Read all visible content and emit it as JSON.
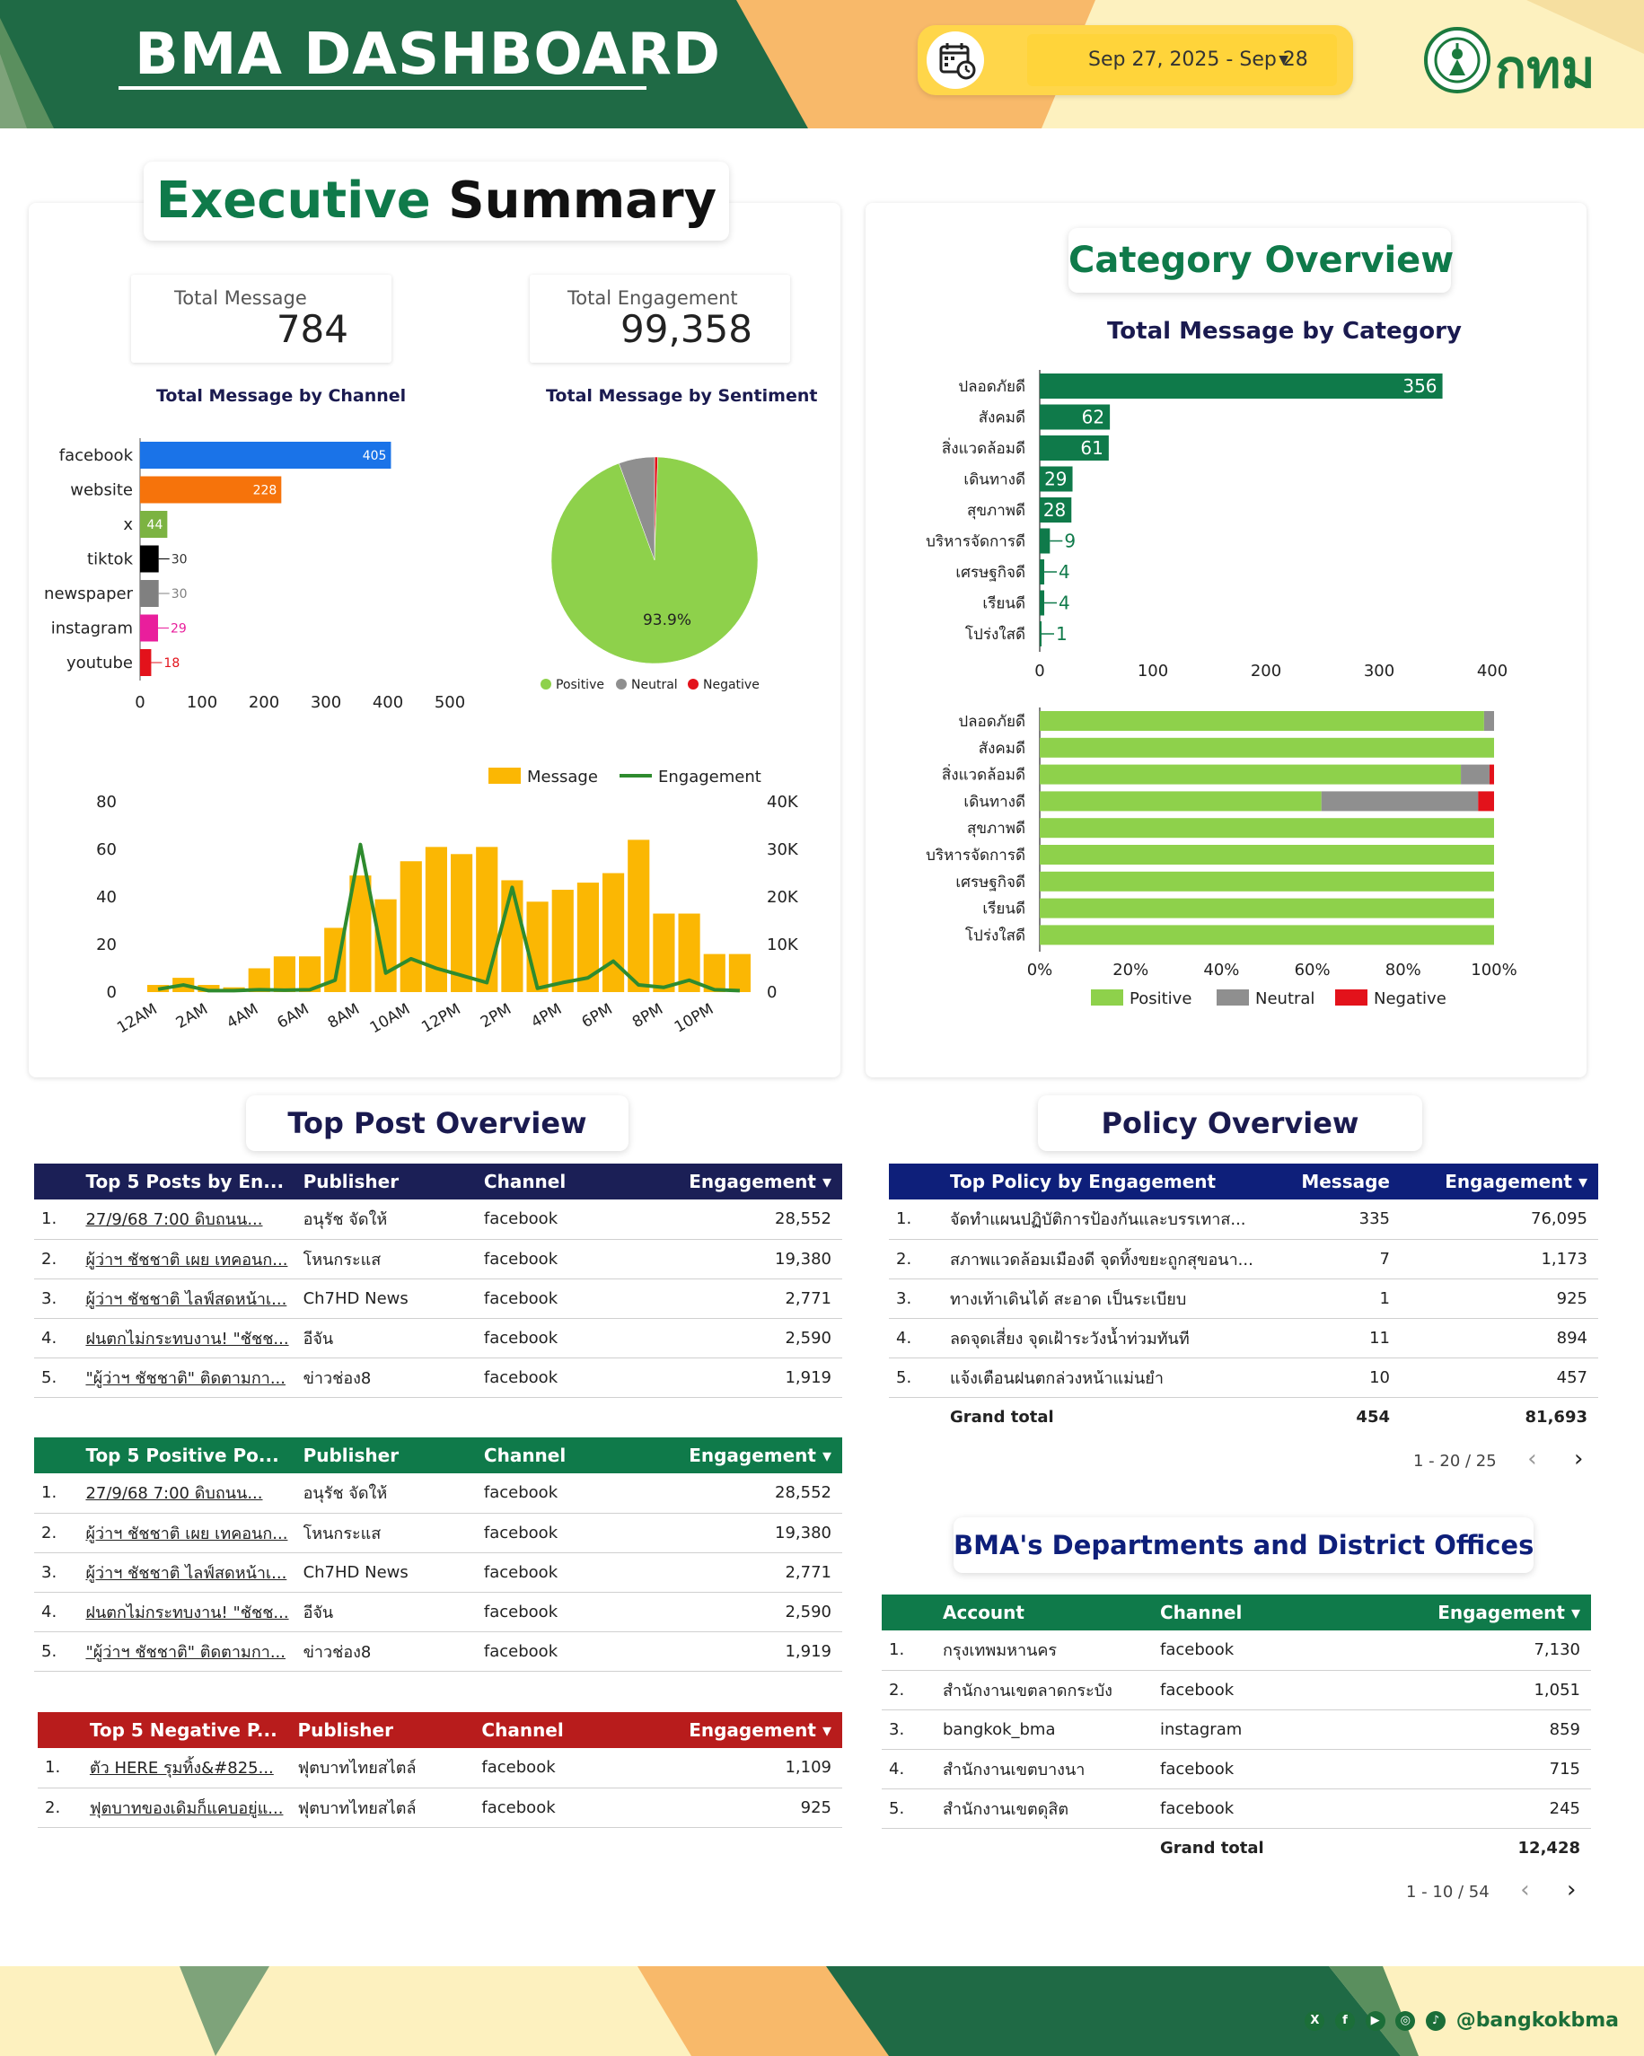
{
  "header": {
    "title": "BMA DASHBOARD",
    "date_range": "Sep 27, 2025 - Sep 28",
    "logo_text": "กทม"
  },
  "colors": {
    "dark_green": "#1f6a45",
    "green": "#0f7a4a",
    "orange": "#f8b96a",
    "cream": "#fdf1bf",
    "yellow": "#ffd64a",
    "positive": "#8ed14b",
    "neutral": "#8f8f8f",
    "negative": "#e3121b",
    "navy": "#1b1f56",
    "blue_header": "#0e1f7a",
    "red_header": "#b81c1c"
  },
  "executive": {
    "title_word1": "Executive",
    "title_word2": "Summary",
    "total_message_label": "Total Message",
    "total_message_value": "784",
    "total_engagement_label": "Total Engagement",
    "total_engagement_value": "99,358",
    "channel_chart_title": "Total Message by Channel",
    "sentiment_chart_title": "Total Message by Sentiment"
  },
  "category_section": {
    "title": "Category Overview",
    "chart_title": "Total Message by Category"
  },
  "top_post": {
    "title": "Top Post Overview",
    "engagement_table": {
      "columns": [
        "Top 5 Posts by En...",
        "Publisher",
        "Channel",
        "Engagement"
      ],
      "rows": [
        [
          "1.",
          "27/9/68 7:00 ดิบถนน...",
          "อนุรัช จัดให้",
          "facebook",
          "28,552"
        ],
        [
          "2.",
          "ผู้ว่าฯ ชัชชาติ เผย เทคอนก...",
          "โหนกระแส",
          "facebook",
          "19,380"
        ],
        [
          "3.",
          "ผู้ว่าฯ ชัชชาติ ไลฟ์สดหน้าเ...",
          "Ch7HD News",
          "facebook",
          "2,771"
        ],
        [
          "4.",
          "ฝนตกไม่กระทบงาน! \"ชัชช...",
          "อีจัน",
          "facebook",
          "2,590"
        ],
        [
          "5.",
          "\"ผู้ว่าฯ ชัชชาติ\" ติดตามกา...",
          "ข่าวช่อง8",
          "facebook",
          "1,919"
        ]
      ]
    },
    "positive_table": {
      "columns": [
        "Top 5 Positive Po...",
        "Publisher",
        "Channel",
        "Engagement"
      ],
      "rows": [
        [
          "1.",
          "27/9/68 7:00 ดิบถนน...",
          "อนุรัช จัดให้",
          "facebook",
          "28,552"
        ],
        [
          "2.",
          "ผู้ว่าฯ ชัชชาติ เผย เทคอนก...",
          "โหนกระแส",
          "facebook",
          "19,380"
        ],
        [
          "3.",
          "ผู้ว่าฯ ชัชชาติ ไลฟ์สดหน้าเ...",
          "Ch7HD News",
          "facebook",
          "2,771"
        ],
        [
          "4.",
          "ฝนตกไม่กระทบงาน! \"ชัชช...",
          "อีจัน",
          "facebook",
          "2,590"
        ],
        [
          "5.",
          "\"ผู้ว่าฯ ชัชชาติ\" ติดตามกา...",
          "ข่าวช่อง8",
          "facebook",
          "1,919"
        ]
      ]
    },
    "negative_table": {
      "columns": [
        "Top 5 Negative P...",
        "Publisher",
        "Channel",
        "Engagement"
      ],
      "rows": [
        [
          "1.",
          "ตัว HERE รุมทิ้ง&#825...",
          "ฟุตบาทไทยสไตล์",
          "facebook",
          "1,109"
        ],
        [
          "2.",
          "ฟุตบาทของเดิมก็แคบอยู่แ...",
          "ฟุตบาทไทยสไตล์",
          "facebook",
          "925"
        ]
      ]
    }
  },
  "policy": {
    "title": "Policy Overview",
    "columns": [
      "Top Policy by Engagement",
      "Message",
      "Engagement"
    ],
    "rows": [
      [
        "1.",
        "จัดทำแผนปฏิบัติการป้องกันและบรรเทาส...",
        "335",
        "76,095"
      ],
      [
        "2.",
        "สภาพแวดล้อมเมืองดี จุดทิ้งขยะถูกสุขอนา...",
        "7",
        "1,173"
      ],
      [
        "3.",
        "ทางเท้าเดินได้ สะอาด เป็นระเบียบ",
        "1",
        "925"
      ],
      [
        "4.",
        "ลดจุดเสี่ยง จุดเฝ้าระวังน้ำท่วมทันที",
        "11",
        "894"
      ],
      [
        "5.",
        "แจ้งเตือนฝนตกล่วงหน้าแม่นยำ",
        "10",
        "457"
      ]
    ],
    "grand_total_label": "Grand total",
    "grand_total_message": "454",
    "grand_total_engagement": "81,693",
    "pager": "1 - 20 / 25"
  },
  "departments": {
    "title": "BMA's Departments and District Offices",
    "columns": [
      "Account",
      "Channel",
      "Engagement"
    ],
    "rows": [
      [
        "1.",
        "กรุงเทพมหานคร",
        "facebook",
        "7,130"
      ],
      [
        "2.",
        "สำนักงานเขตลาดกระบัง",
        "facebook",
        "1,051"
      ],
      [
        "3.",
        "bangkok_bma",
        "instagram",
        "859"
      ],
      [
        "4.",
        "สำนักงานเขตบางนา",
        "facebook",
        "715"
      ],
      [
        "5.",
        "สำนักงานเขตดุสิต",
        "facebook",
        "245"
      ]
    ],
    "grand_total_label": "Grand total",
    "grand_total_engagement": "12,428",
    "pager": "1 - 10 / 54"
  },
  "footer": {
    "handle": "@bangkokbma"
  },
  "chart_data": [
    {
      "id": "channel",
      "type": "bar",
      "orientation": "horizontal",
      "title": "Total Message by Channel",
      "categories": [
        "facebook",
        "website",
        "x",
        "tiktok",
        "newspaper",
        "instagram",
        "youtube"
      ],
      "values": [
        405,
        228,
        44,
        30,
        30,
        29,
        18
      ],
      "colors": [
        "#1a73e8",
        "#f6730b",
        "#7cb342",
        "#000000",
        "#808080",
        "#e91e9c",
        "#e3121b"
      ],
      "xticks": [
        0,
        100,
        200,
        300,
        400,
        500
      ],
      "xlim": [
        0,
        500
      ]
    },
    {
      "id": "sentiment",
      "type": "pie",
      "title": "Total Message by Sentiment",
      "labels": [
        "Positive",
        "Neutral",
        "Negative"
      ],
      "values": [
        93.9,
        5.6,
        0.5
      ],
      "colors": [
        "#8ed14b",
        "#8f8f8f",
        "#e3121b"
      ],
      "data_label": "93.9%",
      "legend": "bottom"
    },
    {
      "id": "hourly",
      "type": "bar",
      "combo": "bar+line",
      "categories": [
        "12AM",
        "1AM",
        "2AM",
        "3AM",
        "4AM",
        "5AM",
        "6AM",
        "7AM",
        "8AM",
        "9AM",
        "10AM",
        "11AM",
        "12PM",
        "1PM",
        "2PM",
        "3PM",
        "4PM",
        "5PM",
        "6PM",
        "7PM",
        "8PM",
        "9PM",
        "10PM",
        "11PM"
      ],
      "xtick_labels": [
        "12AM",
        "2AM",
        "4AM",
        "6AM",
        "8AM",
        "10AM",
        "12PM",
        "2PM",
        "4PM",
        "6PM",
        "8PM",
        "10PM"
      ],
      "series": [
        {
          "name": "Message",
          "axis": "left",
          "color": "#fbb703",
          "values": [
            3,
            6,
            3,
            2,
            10,
            15,
            15,
            27,
            49,
            39,
            55,
            61,
            58,
            61,
            47,
            38,
            43,
            46,
            50,
            64,
            33,
            33,
            16,
            16
          ]
        },
        {
          "name": "Engagement",
          "axis": "right",
          "color": "#2e8b2e",
          "values": [
            600,
            1500,
            300,
            300,
            500,
            400,
            500,
            2500,
            31000,
            4000,
            7000,
            5000,
            3500,
            2000,
            22000,
            800,
            2000,
            3000,
            6500,
            1500,
            1000,
            2500,
            500,
            300
          ]
        }
      ],
      "ylim_left": [
        0,
        80
      ],
      "yticks_left": [
        0,
        20,
        40,
        60,
        80
      ],
      "ylim_right": [
        0,
        40000
      ],
      "yticks_right": [
        "0",
        "10K",
        "20K",
        "30K",
        "40K"
      ],
      "legend": "top-right"
    },
    {
      "id": "category",
      "type": "bar",
      "orientation": "horizontal",
      "title": "Total Message by Category",
      "categories": [
        "ปลอดภัยดี",
        "สังคมดี",
        "สิ่งแวดล้อมดี",
        "เดินทางดี",
        "สุขภาพดี",
        "บริหารจัดการดี",
        "เศรษฐกิจดี",
        "เรียนดี",
        "โปร่งใสดี"
      ],
      "values": [
        356,
        62,
        61,
        29,
        28,
        9,
        4,
        4,
        1
      ],
      "color": "#0f7a4a",
      "xticks": [
        0,
        100,
        200,
        300,
        400
      ],
      "xlim": [
        0,
        400
      ]
    },
    {
      "id": "category_sentiment",
      "type": "bar",
      "orientation": "horizontal",
      "stacked": "percent",
      "categories": [
        "ปลอดภัยดี",
        "สังคมดี",
        "สิ่งแวดล้อมดี",
        "เดินทางดี",
        "สุขภาพดี",
        "บริหารจัดการดี",
        "เศรษฐกิจดี",
        "เรียนดี",
        "โปร่งใสดี"
      ],
      "series": [
        {
          "name": "Positive",
          "color": "#8ed14b",
          "values": [
            97.8,
            100,
            92.7,
            62,
            100,
            100,
            100,
            100,
            100
          ]
        },
        {
          "name": "Neutral",
          "color": "#8f8f8f",
          "values": [
            2.2,
            0,
            6.3,
            34.5,
            0,
            0,
            0,
            0,
            0
          ]
        },
        {
          "name": "Negative",
          "color": "#e3121b",
          "values": [
            0,
            0,
            1,
            3.5,
            0,
            0,
            0,
            0,
            0
          ]
        }
      ],
      "xticks": [
        "0%",
        "20%",
        "40%",
        "60%",
        "80%",
        "100%"
      ],
      "legend": "bottom"
    }
  ]
}
